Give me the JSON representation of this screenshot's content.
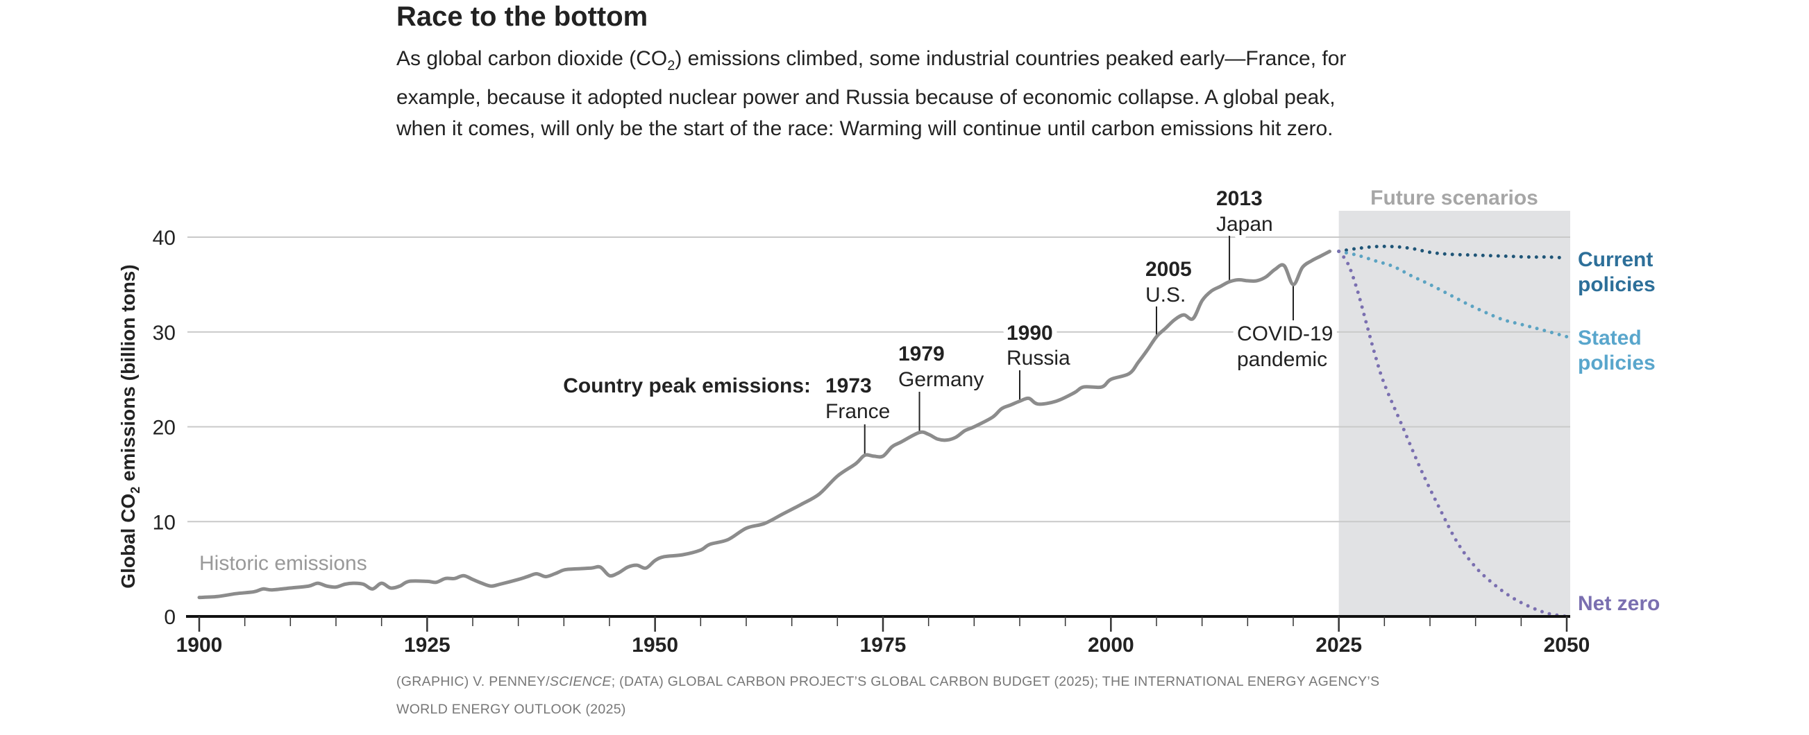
{
  "header": {
    "title": "Race to the bottom",
    "description_before": "As global carbon dioxide (CO",
    "description_sub": "2",
    "description_after": ") emissions climbed, some industrial countries peaked early—France, for example, because it adopted nuclear power and Russia because of economic collapse. A global peak, when it comes, will only be the start of the race: Warming will continue until carbon emissions hit zero."
  },
  "chart_data": {
    "type": "line",
    "ylabel_before": "Global CO",
    "ylabel_sub": "2",
    "ylabel_after": " emissions (billion tons)",
    "xlim": [
      1900,
      2050
    ],
    "ylim": [
      0,
      40
    ],
    "x_ticks": [
      1900,
      1925,
      1950,
      1975,
      2000,
      2025,
      2050
    ],
    "x_tick_labels": [
      "1900",
      "1925",
      "1950",
      "1975",
      "2000",
      "2025",
      "2050"
    ],
    "y_ticks": [
      0,
      10,
      20,
      30,
      40
    ],
    "y_tick_labels": [
      "0",
      "10",
      "20",
      "30",
      "40"
    ],
    "grid": true,
    "shaded_region": {
      "label": "Future scenarios",
      "x": [
        2025,
        2050
      ],
      "color": "#e1e2e4"
    },
    "series": [
      {
        "name": "Historic emissions",
        "style": "solid",
        "color": "#8c8c8c",
        "x": [
          1900,
          1902,
          1904,
          1906,
          1907,
          1908,
          1910,
          1912,
          1913,
          1914,
          1915,
          1916,
          1917,
          1918,
          1919,
          1920,
          1921,
          1922,
          1923,
          1925,
          1926,
          1927,
          1928,
          1929,
          1930,
          1931,
          1932,
          1933,
          1935,
          1936,
          1937,
          1938,
          1939,
          1940,
          1941,
          1943,
          1944,
          1945,
          1946,
          1947,
          1948,
          1949,
          1950,
          1951,
          1953,
          1955,
          1956,
          1958,
          1960,
          1962,
          1964,
          1966,
          1968,
          1970,
          1972,
          1973,
          1974,
          1975,
          1976,
          1977,
          1979,
          1980,
          1981,
          1982,
          1983,
          1984,
          1985,
          1987,
          1988,
          1989,
          1990,
          1991,
          1992,
          1994,
          1996,
          1997,
          1999,
          2000,
          2002,
          2003,
          2004,
          2005,
          2006,
          2007,
          2008,
          2009,
          2010,
          2011,
          2012,
          2013,
          2014,
          2015,
          2016,
          2017,
          2018,
          2019,
          2020,
          2021,
          2022,
          2023,
          2024
        ],
        "values": [
          2.0,
          2.1,
          2.4,
          2.6,
          2.9,
          2.8,
          3.0,
          3.2,
          3.5,
          3.2,
          3.1,
          3.4,
          3.5,
          3.4,
          2.9,
          3.5,
          3.0,
          3.2,
          3.7,
          3.7,
          3.6,
          4.0,
          4.0,
          4.3,
          3.9,
          3.5,
          3.2,
          3.4,
          3.9,
          4.2,
          4.5,
          4.2,
          4.5,
          4.9,
          5.0,
          5.1,
          5.2,
          4.3,
          4.6,
          5.2,
          5.4,
          5.1,
          5.9,
          6.3,
          6.5,
          7.0,
          7.6,
          8.1,
          9.3,
          9.8,
          10.8,
          11.8,
          12.9,
          14.8,
          16.1,
          17.0,
          16.9,
          16.9,
          17.9,
          18.4,
          19.4,
          19.2,
          18.7,
          18.6,
          18.9,
          19.6,
          20.0,
          21.0,
          21.9,
          22.3,
          22.7,
          23.0,
          22.4,
          22.7,
          23.6,
          24.2,
          24.2,
          25.0,
          25.6,
          26.8,
          28.1,
          29.5,
          30.4,
          31.3,
          31.8,
          31.4,
          33.3,
          34.3,
          34.8,
          35.3,
          35.5,
          35.4,
          35.4,
          35.8,
          36.6,
          37.0,
          35.0,
          36.8,
          37.5,
          38.0,
          38.5
        ]
      },
      {
        "name": "Current policies",
        "style": "dotted",
        "color": "#1f5577",
        "label_color": "#2d6f99",
        "x": [
          2025,
          2027,
          2029,
          2031,
          2033,
          2035,
          2037,
          2040,
          2043,
          2046,
          2048,
          2050
        ],
        "values": [
          38.5,
          38.8,
          39.0,
          39.0,
          38.8,
          38.4,
          38.2,
          38.1,
          38.0,
          37.9,
          37.9,
          37.8
        ]
      },
      {
        "name": "Stated policies",
        "style": "dotted",
        "color": "#5ba3c2",
        "label_color": "#59a6cc",
        "x": [
          2025,
          2027,
          2029,
          2031,
          2033,
          2035,
          2037,
          2039,
          2041,
          2043,
          2045,
          2047,
          2050
        ],
        "values": [
          38.5,
          38.1,
          37.5,
          36.9,
          35.9,
          35.0,
          34.0,
          33.0,
          32.1,
          31.3,
          30.8,
          30.3,
          29.5
        ]
      },
      {
        "name": "Net zero",
        "style": "dotted",
        "color": "#7a6fb0",
        "label_color": "#7a6fb0",
        "x": [
          2025,
          2026,
          2027,
          2028,
          2029,
          2030,
          2032,
          2034,
          2036,
          2038,
          2040,
          2042,
          2044,
          2046,
          2048,
          2050
        ],
        "values": [
          38.5,
          37.2,
          34.5,
          31.0,
          27.5,
          24.5,
          20.0,
          15.5,
          11.5,
          7.8,
          5.2,
          3.4,
          2.0,
          1.0,
          0.3,
          0.0
        ]
      }
    ],
    "annotations": {
      "country_peak_label": "Country peak emissions:",
      "peaks": [
        {
          "year": "1973",
          "country": "France"
        },
        {
          "year": "1979",
          "country": "Germany"
        },
        {
          "year": "1990",
          "country": "Russia"
        },
        {
          "year": "2005",
          "country": "U.S."
        },
        {
          "year": "2013",
          "country": "Japan"
        }
      ],
      "covid": {
        "line1": "COVID-19",
        "line2": "pandemic"
      },
      "current_line1": "Current",
      "current_line2": "policies",
      "stated_line1": "Stated",
      "stated_line2": "policies",
      "netzero": "Net zero",
      "historic": "Historic emissions"
    }
  },
  "source": {
    "before": "(GRAPHIC) V. PENNEY/",
    "italic": "SCIENCE",
    "after": "; (DATA) GLOBAL CARBON PROJECT’S GLOBAL CARBON BUDGET (2025); THE INTERNATIONAL ENERGY AGENCY’S WORLD ENERGY OUTLOOK (2025)"
  }
}
